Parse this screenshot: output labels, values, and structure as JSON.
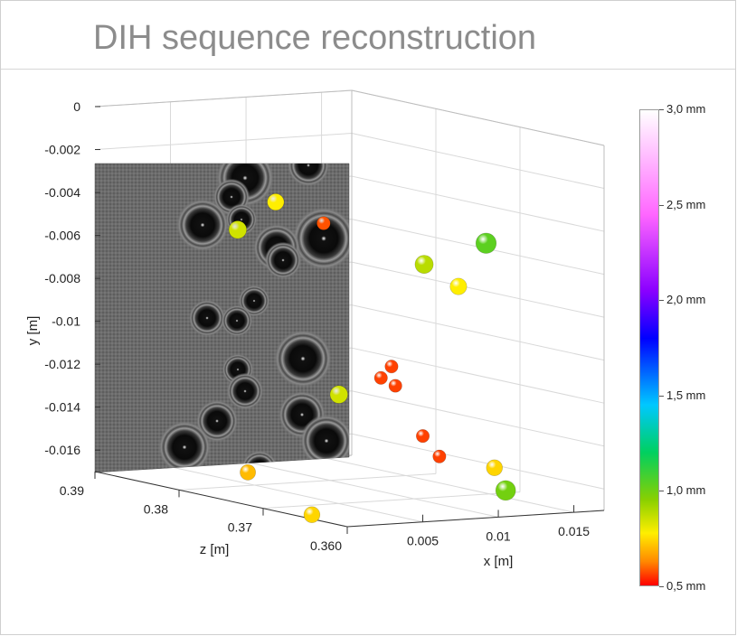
{
  "title": "DIH sequence reconstruction",
  "chart_data": {
    "type": "scatter3d",
    "title": "DIH sequence reconstruction",
    "xlabel": "x [m]",
    "ylabel": "y [m]",
    "zlabel": "z [m]",
    "xlim": [
      0.0,
      0.017
    ],
    "ylim": [
      -0.017,
      0.0
    ],
    "zlim": [
      0.36,
      0.39
    ],
    "x_ticks": [
      "0.005",
      "0.01",
      "0.015"
    ],
    "y_ticks": [
      "0",
      "-0.002",
      "-0.004",
      "-0.006",
      "-0.008",
      "-0.01",
      "-0.012",
      "-0.014",
      "-0.016"
    ],
    "z_ticks": [
      "0.39",
      "0.38",
      "0.37",
      "0.360"
    ],
    "grid": true,
    "hologram_plane": "grayscale hologram image at z = 0.390 m",
    "colorbar": {
      "label_ticks": [
        "3,0 mm",
        "2,5 mm",
        "2,0 mm",
        "1,5 mm",
        "1,0 mm",
        "0,5 mm"
      ],
      "values": [
        3.0,
        2.5,
        2.0,
        1.5,
        1.0,
        0.5
      ],
      "range": [
        0.5,
        3.0
      ]
    },
    "points": [
      {
        "x": 0.0025,
        "y": -0.0031,
        "z": 0.373,
        "d": 0.95
      },
      {
        "x": 0.004,
        "y": -0.0039,
        "z": 0.37,
        "d": 0.65
      },
      {
        "x": 0.0011,
        "y": -0.0045,
        "z": 0.375,
        "d": 1.05
      },
      {
        "x": 0.0142,
        "y": -0.0052,
        "z": 0.369,
        "d": 1.3
      },
      {
        "x": 0.0101,
        "y": -0.006,
        "z": 0.369,
        "d": 1.1
      },
      {
        "x": 0.0107,
        "y": -0.0068,
        "z": 0.366,
        "d": 0.95
      },
      {
        "x": 0.0046,
        "y": -0.01,
        "z": 0.363,
        "d": 0.62
      },
      {
        "x": 0.0039,
        "y": -0.0105,
        "z": 0.363,
        "d": 0.62
      },
      {
        "x": 0.0043,
        "y": -0.0108,
        "z": 0.362,
        "d": 0.62
      },
      {
        "x": 0.0039,
        "y": -0.0117,
        "z": 0.368,
        "d": 1.05
      },
      {
        "x": 0.005,
        "y": -0.013,
        "z": 0.36,
        "d": 0.62
      },
      {
        "x": 0.0061,
        "y": -0.014,
        "z": 0.36,
        "d": 0.62
      },
      {
        "x": 0.0103,
        "y": -0.0148,
        "z": 0.361,
        "d": 0.9
      },
      {
        "x": 0.0001,
        "y": -0.0155,
        "z": 0.372,
        "d": 0.85
      },
      {
        "x": 0.0116,
        "y": -0.016,
        "z": 0.362,
        "d": 1.25
      },
      {
        "x": 0.001,
        "y": -0.017,
        "z": 0.366,
        "d": 0.9
      }
    ]
  }
}
